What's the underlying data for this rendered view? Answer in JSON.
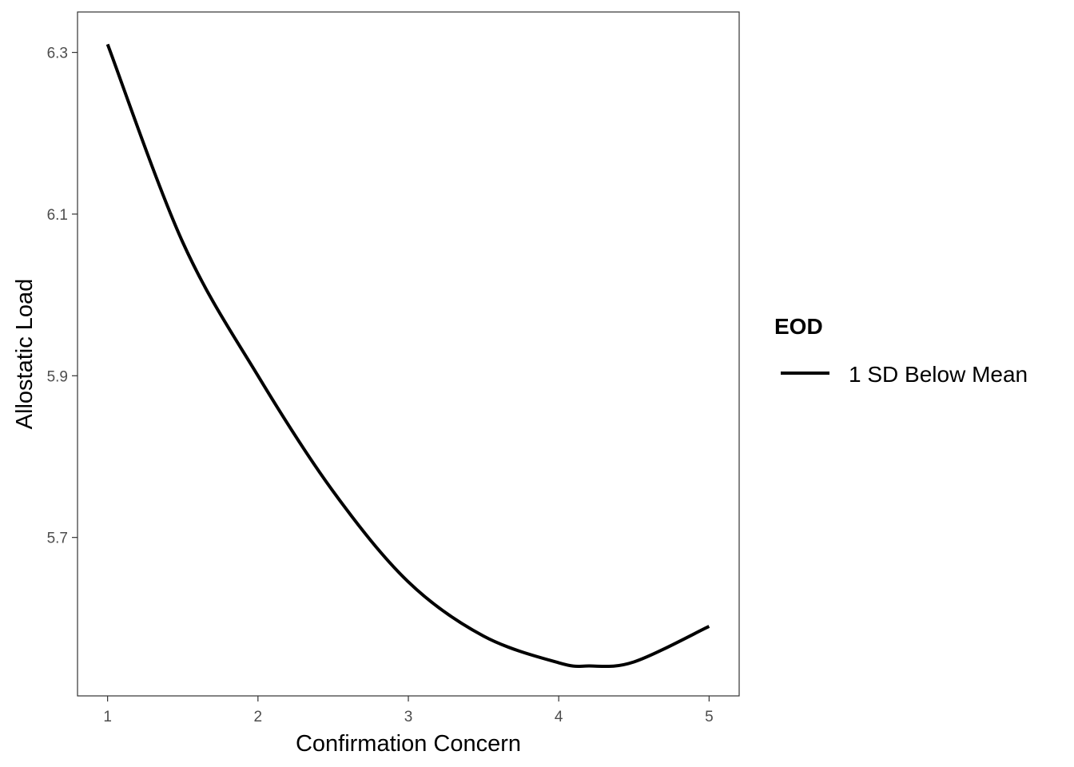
{
  "chart_data": {
    "type": "line",
    "title": "",
    "xlabel": "Confirmation Concern",
    "ylabel": "Allostatic Load",
    "xlim": [
      0.8,
      5.2
    ],
    "ylim": [
      5.504,
      6.35
    ],
    "x_ticks": [
      1,
      2,
      3,
      4,
      5
    ],
    "x_tick_labels": [
      "1",
      "2",
      "3",
      "4",
      "5"
    ],
    "y_ticks": [
      5.7,
      5.9,
      6.1,
      6.3
    ],
    "y_tick_labels": [
      "5.7",
      "5.9",
      "6.1",
      "6.3"
    ],
    "grid": false,
    "legend": {
      "title": "EOD",
      "position": "right"
    },
    "series": [
      {
        "name": "1 SD Below Mean",
        "color": "#000000",
        "x": [
          1.0,
          1.5,
          2.0,
          2.5,
          3.0,
          3.5,
          4.0,
          4.2,
          4.5,
          5.0
        ],
        "y": [
          6.31,
          6.065,
          5.9,
          5.757,
          5.645,
          5.578,
          5.545,
          5.541,
          5.546,
          5.59
        ]
      }
    ]
  }
}
